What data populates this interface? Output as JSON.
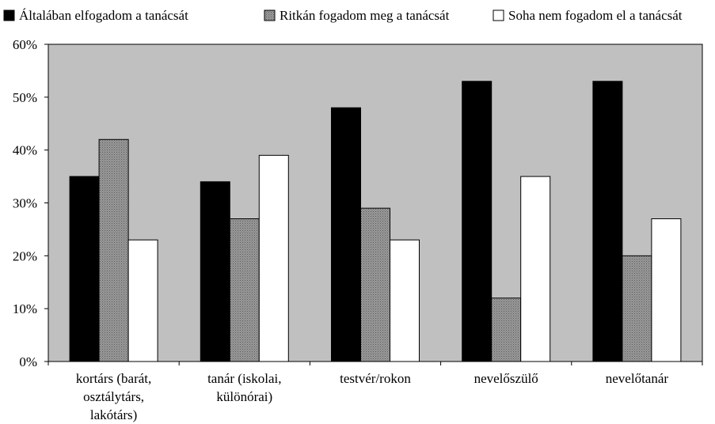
{
  "chart_data": {
    "type": "bar",
    "title": "",
    "xlabel": "",
    "ylabel": "",
    "categories": [
      [
        "kortárs (barát,",
        "osztálytárs,",
        "lakótárs)"
      ],
      [
        "tanár (iskolai,",
        "különórai)"
      ],
      [
        "testvér/rokon"
      ],
      [
        "nevelőszülő"
      ],
      [
        "nevelőtanár"
      ]
    ],
    "series": [
      {
        "name": "Általában elfogadom a tanácsát",
        "values": [
          35,
          34,
          48,
          53,
          53
        ],
        "color": "#000000",
        "pattern": "solid"
      },
      {
        "name": "Ritkán fogadom meg a tanácsát",
        "values": [
          42,
          27,
          29,
          12,
          20
        ],
        "color": "#808080",
        "pattern": "dotted-gray"
      },
      {
        "name": "Soha nem fogadom el a tanácsát",
        "values": [
          23,
          39,
          23,
          35,
          27
        ],
        "color": "#ffffff",
        "pattern": "solid"
      }
    ],
    "ylim": [
      0,
      60
    ],
    "yticks": [
      0,
      10,
      20,
      30,
      40,
      50,
      60
    ],
    "ytick_labels": [
      "0%",
      "10%",
      "20%",
      "30%",
      "40%",
      "50%",
      "60%"
    ],
    "grid": false,
    "legend_position": "top",
    "plot_background": "#c0c0c0"
  }
}
